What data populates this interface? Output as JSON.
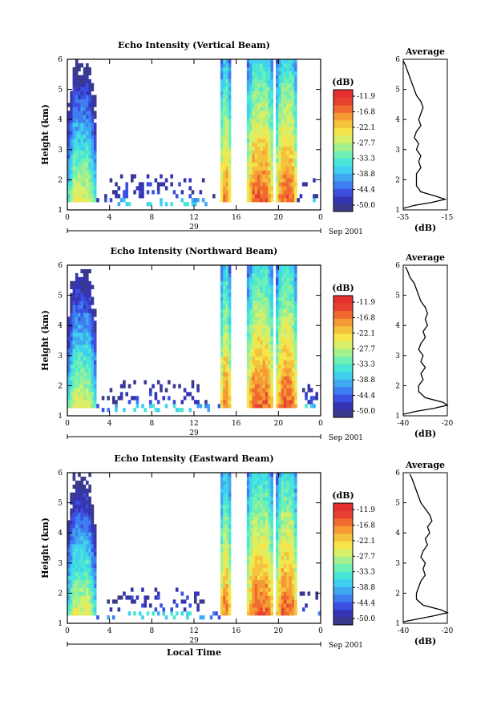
{
  "chart_data": {
    "type": "heatmap",
    "common": {
      "x_ticks": [
        "0",
        "4",
        "8",
        "12",
        "16",
        "20",
        "0"
      ],
      "x_range_hours": [
        0,
        24
      ],
      "y_ticks": [
        "1",
        "2",
        "3",
        "4",
        "5",
        "6"
      ],
      "ylim_km": [
        1,
        6
      ],
      "ylabel": "Height (km)",
      "date_day": "29",
      "date_label": "Sep 2001",
      "xlabel": "Local Time",
      "colorbar_title": "(dB)",
      "colorbar_ticks": [
        "-11.9",
        "-16.8",
        "-22.1",
        "-27.7",
        "-33.3",
        "-38.8",
        "-44.4",
        "-50.0"
      ],
      "colorbar_range_db": [
        -52,
        -9
      ],
      "colors": [
        "#3a3a8c",
        "#3535b4",
        "#3b4fe0",
        "#3d7ef0",
        "#3fa8f0",
        "#3fd0f0",
        "#48e6d6",
        "#6ff0b4",
        "#a3f08c",
        "#d6f06a",
        "#f5e54a",
        "#f5c23c",
        "#f59a35",
        "#f06a30",
        "#e84030",
        "#e63030"
      ],
      "profile_title": "Average",
      "profile_xlabel": "(dB)",
      "echo_regions": [
        {
          "t_start": 0,
          "t_end": 2.7,
          "z_start": 1.2,
          "z_end": 6.0,
          "peak_db": -22
        },
        {
          "t_start": 2.7,
          "t_end": 14.5,
          "z_start": 1.1,
          "z_end": 2.2,
          "peak_db": -42
        },
        {
          "t_start": 14.5,
          "t_end": 15.5,
          "z_start": 1.2,
          "z_end": 6.0,
          "peak_db": -14
        },
        {
          "t_start": 17.0,
          "t_end": 19.6,
          "z_start": 1.2,
          "z_end": 6.0,
          "peak_db": -12
        },
        {
          "t_start": 19.8,
          "t_end": 21.8,
          "z_start": 1.2,
          "z_end": 6.0,
          "peak_db": -12
        },
        {
          "t_start": 21.8,
          "t_end": 24,
          "z_start": 1.2,
          "z_end": 2.0,
          "peak_db": -42
        }
      ]
    },
    "panels": [
      {
        "title": "Echo Intensity (Vertical Beam)",
        "profile_x_ticks": [
          "-35",
          "-15"
        ],
        "profile_xlim": [
          -35,
          -15
        ],
        "profile": [
          [
            1.05,
            -35
          ],
          [
            1.15,
            -30
          ],
          [
            1.25,
            -22
          ],
          [
            1.35,
            -16
          ],
          [
            1.45,
            -20
          ],
          [
            1.6,
            -27
          ],
          [
            1.8,
            -29
          ],
          [
            2.0,
            -29
          ],
          [
            2.2,
            -29
          ],
          [
            2.4,
            -27
          ],
          [
            2.6,
            -28
          ],
          [
            2.8,
            -27
          ],
          [
            3.0,
            -29
          ],
          [
            3.2,
            -28
          ],
          [
            3.4,
            -30
          ],
          [
            3.6,
            -29
          ],
          [
            3.8,
            -27
          ],
          [
            4.0,
            -28
          ],
          [
            4.2,
            -27
          ],
          [
            4.4,
            -26
          ],
          [
            4.6,
            -27
          ],
          [
            4.8,
            -29
          ],
          [
            5.0,
            -30
          ],
          [
            5.2,
            -31
          ],
          [
            5.4,
            -32
          ],
          [
            5.6,
            -33
          ],
          [
            5.8,
            -34
          ],
          [
            5.95,
            -35
          ]
        ]
      },
      {
        "title": "Echo Intensity (Northward Beam)",
        "profile_x_ticks": [
          "-40",
          "-20"
        ],
        "profile_xlim": [
          -40,
          -20
        ],
        "profile": [
          [
            1.05,
            -40
          ],
          [
            1.15,
            -34
          ],
          [
            1.25,
            -26
          ],
          [
            1.35,
            -20
          ],
          [
            1.45,
            -22
          ],
          [
            1.6,
            -30
          ],
          [
            1.8,
            -33
          ],
          [
            2.0,
            -33
          ],
          [
            2.2,
            -31
          ],
          [
            2.4,
            -32
          ],
          [
            2.6,
            -30
          ],
          [
            2.8,
            -32
          ],
          [
            3.0,
            -31
          ],
          [
            3.2,
            -33
          ],
          [
            3.4,
            -32
          ],
          [
            3.6,
            -30
          ],
          [
            3.8,
            -31
          ],
          [
            4.0,
            -29
          ],
          [
            4.2,
            -30
          ],
          [
            4.4,
            -29
          ],
          [
            4.6,
            -30
          ],
          [
            4.8,
            -32
          ],
          [
            5.0,
            -33
          ],
          [
            5.2,
            -34
          ],
          [
            5.4,
            -35
          ],
          [
            5.6,
            -37
          ],
          [
            5.8,
            -38
          ],
          [
            5.95,
            -39
          ]
        ]
      },
      {
        "title": "Echo Intensity (Eastward Beam)",
        "profile_x_ticks": [
          "-40",
          "-20"
        ],
        "profile_xlim": [
          -40,
          -20
        ],
        "profile": [
          [
            1.05,
            -40
          ],
          [
            1.15,
            -33
          ],
          [
            1.25,
            -26
          ],
          [
            1.35,
            -20
          ],
          [
            1.45,
            -23
          ],
          [
            1.6,
            -31
          ],
          [
            1.8,
            -34
          ],
          [
            2.0,
            -34
          ],
          [
            2.2,
            -33
          ],
          [
            2.4,
            -32
          ],
          [
            2.6,
            -30
          ],
          [
            2.8,
            -31
          ],
          [
            3.0,
            -30
          ],
          [
            3.2,
            -32
          ],
          [
            3.4,
            -31
          ],
          [
            3.6,
            -29
          ],
          [
            3.8,
            -30
          ],
          [
            4.0,
            -28
          ],
          [
            4.2,
            -29
          ],
          [
            4.4,
            -27
          ],
          [
            4.6,
            -28
          ],
          [
            4.8,
            -30
          ],
          [
            5.0,
            -32
          ],
          [
            5.2,
            -33
          ],
          [
            5.4,
            -34
          ],
          [
            5.6,
            -35
          ],
          [
            5.8,
            -36
          ],
          [
            5.95,
            -37
          ]
        ]
      }
    ]
  }
}
